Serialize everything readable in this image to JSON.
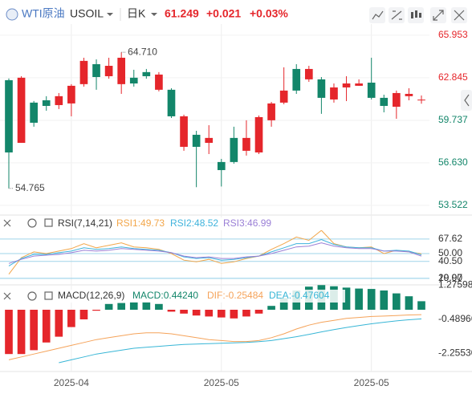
{
  "header": {
    "name": "WTI原油",
    "symbol": "USOIL",
    "period": "日K",
    "price": "61.249",
    "change": "+0.021",
    "change_pct": "+0.03%"
  },
  "chart_data": [
    {
      "type": "candlestick",
      "categories": [
        null,
        null,
        null,
        null,
        null,
        "2025-04",
        null,
        null,
        null,
        null,
        null,
        null,
        null,
        null,
        null,
        null,
        null,
        "2025-05",
        null,
        null,
        null,
        null,
        null,
        null,
        null,
        null,
        null,
        null,
        null,
        "2025-05",
        null,
        null,
        null,
        null
      ],
      "open": [
        62.67,
        58.09,
        61.03,
        61.2,
        60.85,
        60.97,
        62.38,
        63.84,
        62.96,
        62.38,
        62.85,
        63.26,
        61.97,
        61.97,
        57.8,
        58.68,
        58.09,
        56.69,
        58.45,
        57.51,
        57.39,
        59.74,
        61.03,
        63.49,
        62.73,
        62.73,
        61.26,
        62.14,
        62.26,
        62.49,
        61.38,
        60.73,
        61.5,
        61.23
      ],
      "high": [
        62.8,
        62.96,
        61.15,
        61.5,
        61.73,
        62.38,
        64.31,
        64.19,
        64.31,
        64.71,
        63.43,
        63.49,
        63.26,
        62.08,
        60.15,
        58.97,
        59.38,
        56.92,
        59.27,
        59.74,
        60.09,
        61.08,
        63.61,
        63.84,
        63.72,
        62.9,
        62.43,
        62.96,
        62.73,
        64.31,
        61.61,
        61.91,
        62.08,
        61.55
      ],
      "low": [
        54.765,
        58.09,
        59.27,
        60.44,
        60.56,
        60.03,
        62.2,
        61.97,
        62.78,
        61.67,
        62.2,
        62.78,
        61.85,
        59.91,
        57.51,
        54.85,
        57.27,
        54.9,
        56.57,
        57.16,
        57.27,
        59.27,
        60.91,
        61.67,
        62.55,
        60.21,
        61.03,
        61.14,
        62.26,
        61.26,
        60.32,
        59.85,
        61.2,
        60.95
      ],
      "close": [
        57.39,
        62.85,
        59.56,
        60.79,
        61.5,
        62.26,
        64.08,
        62.9,
        63.72,
        64.31,
        62.43,
        62.96,
        63.08,
        60.03,
        60.03,
        57.8,
        58.45,
        56.1,
        56.69,
        58.45,
        59.97,
        60.97,
        61.91,
        61.91,
        63.49,
        61.38,
        62.14,
        62.43,
        62.43,
        61.38,
        60.79,
        61.73,
        61.67,
        61.249
      ],
      "up_color": "#e5262b",
      "down_color": "#13866a",
      "high_label": "64.710",
      "low_label": "54.765",
      "ylim": [
        52.99,
        66.77
      ],
      "yticks": [
        65.953,
        62.845,
        59.737,
        {
          "value": 56.63,
          "label": "56.630"
        },
        53.522
      ],
      "grid": true
    },
    {
      "type": "line",
      "title": "RSI(7,14,21)",
      "legend_separator": ":",
      "series": [
        {
          "name": "RSI1",
          "color": "#f2a64a",
          "values": [
            25,
            45,
            52,
            50,
            53,
            56,
            62,
            57,
            60,
            63,
            58,
            57,
            55,
            50,
            42,
            40,
            43,
            38,
            40,
            44,
            47,
            55,
            62,
            70,
            66,
            78,
            62,
            58,
            57,
            58,
            50,
            54,
            52,
            49.73
          ]
        },
        {
          "name": "RSI2",
          "color": "#3fb3dc",
          "values": [
            35,
            44,
            49,
            49,
            51,
            53,
            57,
            55,
            56,
            58,
            56,
            55,
            54,
            51,
            46,
            44,
            45,
            42,
            43,
            45,
            47,
            52,
            57,
            62,
            62,
            67,
            61,
            58,
            57,
            57,
            53,
            54,
            53,
            48.52
          ]
        },
        {
          "name": "RSI3",
          "color": "#9a7fd6",
          "values": [
            38,
            43,
            47,
            48,
            49,
            51,
            54,
            53,
            54,
            56,
            55,
            54,
            53,
            51,
            47,
            45,
            46,
            44,
            44,
            46,
            47,
            50,
            54,
            58,
            59,
            63,
            59,
            57,
            56,
            56,
            53,
            53,
            52,
            46.99
          ]
        }
      ],
      "ylim": [
        15,
        83
      ],
      "yticks": [
        67.62,
        {
          "value": 50,
          "label": "50.00"
        },
        {
          "value": 40.5,
          "label": "40.50"
        },
        {
          "value": 20,
          "label": "20.00"
        },
        19.97
      ],
      "grid": true
    },
    {
      "type": "macd",
      "title": "MACD(12,26,9)",
      "legend_separator": ":",
      "series": [
        {
          "name": "MACD",
          "kind": "bar",
          "up_color": "#13866a",
          "down_color": "#e5262b",
          "values": [
            -2.3,
            -2.3,
            -2.1,
            -1.7,
            -1.4,
            -0.9,
            -0.5,
            -0.05,
            0.3,
            0.35,
            0.4,
            0.4,
            0.3,
            -0.1,
            -0.2,
            -0.3,
            -0.35,
            -0.4,
            -0.45,
            -0.35,
            -0.2,
            0.2,
            0.6,
            1.0,
            1.2,
            1.28,
            1.22,
            1.15,
            1.1,
            1.08,
            1.0,
            0.85,
            0.7,
            0.4424
          ],
          "value_labels": [
            null,
            null,
            null,
            null,
            null,
            null,
            null,
            null,
            null,
            null,
            null,
            null,
            null,
            null,
            null,
            null,
            null,
            null,
            null,
            null,
            null,
            null,
            null,
            null,
            null,
            null,
            null,
            null,
            null,
            null,
            null,
            null,
            null,
            "0.44240"
          ]
        },
        {
          "name": "DIF",
          "kind": "line",
          "color": "#f5a35a",
          "values": [
            -2.6,
            -2.45,
            -2.3,
            -2.15,
            -2.0,
            -1.85,
            -1.7,
            -1.55,
            -1.45,
            -1.35,
            -1.25,
            -1.2,
            -1.2,
            -1.25,
            -1.35,
            -1.45,
            -1.55,
            -1.6,
            -1.65,
            -1.65,
            -1.6,
            -1.45,
            -1.25,
            -1.0,
            -0.8,
            -0.65,
            -0.55,
            -0.45,
            -0.4,
            -0.35,
            -0.33,
            -0.3,
            -0.27,
            -0.25484
          ],
          "value_labels": [
            null,
            null,
            null,
            null,
            null,
            null,
            null,
            null,
            null,
            null,
            null,
            null,
            null,
            null,
            null,
            null,
            null,
            null,
            null,
            null,
            null,
            null,
            null,
            null,
            null,
            null,
            null,
            null,
            null,
            null,
            null,
            null,
            null,
            "-0.25484"
          ]
        },
        {
          "name": "DEA",
          "kind": "line",
          "color": "#38b6d6",
          "values": [
            null,
            null,
            null,
            null,
            -2.75,
            -2.6,
            -2.45,
            -2.3,
            -2.2,
            -2.1,
            -2.0,
            -1.95,
            -1.9,
            -1.85,
            -1.8,
            -1.78,
            -1.76,
            -1.74,
            -1.72,
            -1.7,
            -1.66,
            -1.6,
            -1.5,
            -1.4,
            -1.28,
            -1.15,
            -1.03,
            -0.92,
            -0.82,
            -0.73,
            -0.65,
            -0.58,
            -0.52,
            -0.47604
          ],
          "value_labels": [
            null,
            null,
            null,
            null,
            null,
            null,
            null,
            null,
            null,
            null,
            null,
            null,
            null,
            null,
            null,
            null,
            null,
            null,
            null,
            null,
            null,
            null,
            null,
            null,
            null,
            null,
            null,
            null,
            null,
            null,
            null,
            null,
            null,
            "-0.47604"
          ]
        }
      ],
      "ylim": [
        -2.875,
        1.5
      ],
      "yticks": [
        1.27598,
        -0.48966,
        {
          "value": -2.2553,
          "label": "-2.25530"
        }
      ],
      "grid": false
    }
  ]
}
